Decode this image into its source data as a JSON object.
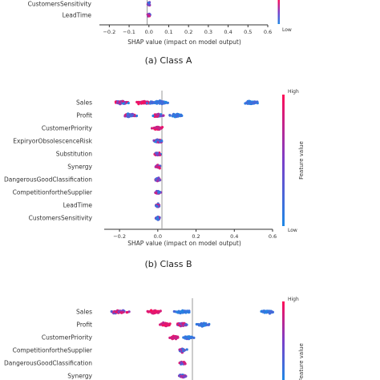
{
  "colors": {
    "low": "#1e88e5",
    "high": "#ff0d57",
    "zero_line": "#999999",
    "axis": "#333333"
  },
  "shared": {
    "xlabel": "SHAP value (impact on model output)",
    "colorbar_high": "High",
    "colorbar_low": "Low",
    "colorbar_title": "Feature value"
  },
  "panels": [
    {
      "caption": "(a) Class A"
    },
    {
      "caption": "(b) Class B"
    },
    {
      "caption": ""
    }
  ],
  "chart_data": [
    {
      "type": "scatter",
      "subtype": "shap-beeswarm",
      "title": "(a) Class A",
      "xlabel": "SHAP value (impact on model output)",
      "xticks": [
        "−0.2",
        "−0.1",
        "0.0",
        "0.1",
        "0.2",
        "0.3",
        "0.4",
        "0.5",
        "0.6"
      ],
      "xlim": [
        -0.25,
        0.6
      ],
      "features": [
        {
          "name": "CustomersSensitivity",
          "clusters": [
            {
              "center": 0.0,
              "spread": 0.01,
              "color": "mixed"
            }
          ]
        },
        {
          "name": "LeadTime",
          "clusters": [
            {
              "center": 0.0,
              "spread": 0.01,
              "color": "mixed"
            }
          ]
        }
      ]
    },
    {
      "type": "scatter",
      "subtype": "shap-beeswarm",
      "title": "(b) Class B",
      "xlabel": "SHAP value (impact on model output)",
      "xticks": [
        "−0.2",
        "0.0",
        "0.2",
        "0.4",
        "0.6"
      ],
      "xlim": [
        -0.28,
        0.6
      ],
      "features": [
        {
          "name": "Sales",
          "clusters": [
            {
              "center": -0.19,
              "spread": 0.05,
              "color": "mixed"
            },
            {
              "center": -0.07,
              "spread": 0.05,
              "color": "high"
            },
            {
              "center": 0.0,
              "spread": 0.08,
              "color": "low"
            },
            {
              "center": 0.49,
              "spread": 0.06,
              "color": "low"
            }
          ]
        },
        {
          "name": "Profit",
          "clusters": [
            {
              "center": -0.15,
              "spread": 0.05,
              "color": "mixed"
            },
            {
              "center": 0.0,
              "spread": 0.04,
              "color": "mixed"
            },
            {
              "center": 0.1,
              "spread": 0.05,
              "color": "low"
            }
          ]
        },
        {
          "name": "CustomerPriority",
          "clusters": [
            {
              "center": 0.0,
              "spread": 0.045,
              "color": "high"
            }
          ]
        },
        {
          "name": "ExpiryorObsolescenceRisk",
          "clusters": [
            {
              "center": 0.0,
              "spread": 0.03,
              "color": "mixed"
            }
          ]
        },
        {
          "name": "Substitution",
          "clusters": [
            {
              "center": 0.0,
              "spread": 0.025,
              "color": "mixed"
            }
          ]
        },
        {
          "name": "Synergy",
          "clusters": [
            {
              "center": 0.0,
              "spread": 0.02,
              "color": "mixed"
            }
          ]
        },
        {
          "name": "DangerousGoodClassification",
          "clusters": [
            {
              "center": 0.0,
              "spread": 0.02,
              "color": "mixed"
            }
          ]
        },
        {
          "name": "CompetitionfortheSupplier",
          "clusters": [
            {
              "center": 0.0,
              "spread": 0.02,
              "color": "mixed"
            }
          ]
        },
        {
          "name": "LeadTime",
          "clusters": [
            {
              "center": 0.0,
              "spread": 0.015,
              "color": "mixed"
            }
          ]
        },
        {
          "name": "CustomersSensitivity",
          "clusters": [
            {
              "center": 0.0,
              "spread": 0.015,
              "color": "mixed"
            }
          ]
        }
      ]
    },
    {
      "type": "scatter",
      "subtype": "shap-beeswarm",
      "title": "",
      "xlabel": "",
      "xticks": [],
      "xlim": [
        -0.3,
        0.4
      ],
      "features": [
        {
          "name": "Sales",
          "clusters": [
            {
              "center": -0.22,
              "spread": 0.05,
              "color": "mixed"
            },
            {
              "center": -0.1,
              "spread": 0.05,
              "color": "high"
            },
            {
              "center": 0.0,
              "spread": 0.05,
              "color": "low"
            },
            {
              "center": 0.3,
              "spread": 0.03,
              "color": "low"
            }
          ]
        },
        {
          "name": "Profit",
          "clusters": [
            {
              "center": -0.06,
              "spread": 0.03,
              "color": "high"
            },
            {
              "center": 0.0,
              "spread": 0.03,
              "color": "mixed"
            },
            {
              "center": 0.07,
              "spread": 0.03,
              "color": "low"
            }
          ]
        },
        {
          "name": "CustomerPriority",
          "clusters": [
            {
              "center": -0.03,
              "spread": 0.02,
              "color": "high"
            },
            {
              "center": 0.02,
              "spread": 0.025,
              "color": "low"
            }
          ]
        },
        {
          "name": "CompetitionfortheSupplier",
          "clusters": [
            {
              "center": 0.0,
              "spread": 0.02,
              "color": "mixed"
            }
          ]
        },
        {
          "name": "DangerousGoodClassification",
          "clusters": [
            {
              "center": 0.0,
              "spread": 0.02,
              "color": "mixed"
            }
          ]
        },
        {
          "name": "Synergy",
          "clusters": [
            {
              "center": 0.0,
              "spread": 0.02,
              "color": "mixed"
            }
          ]
        }
      ]
    }
  ]
}
